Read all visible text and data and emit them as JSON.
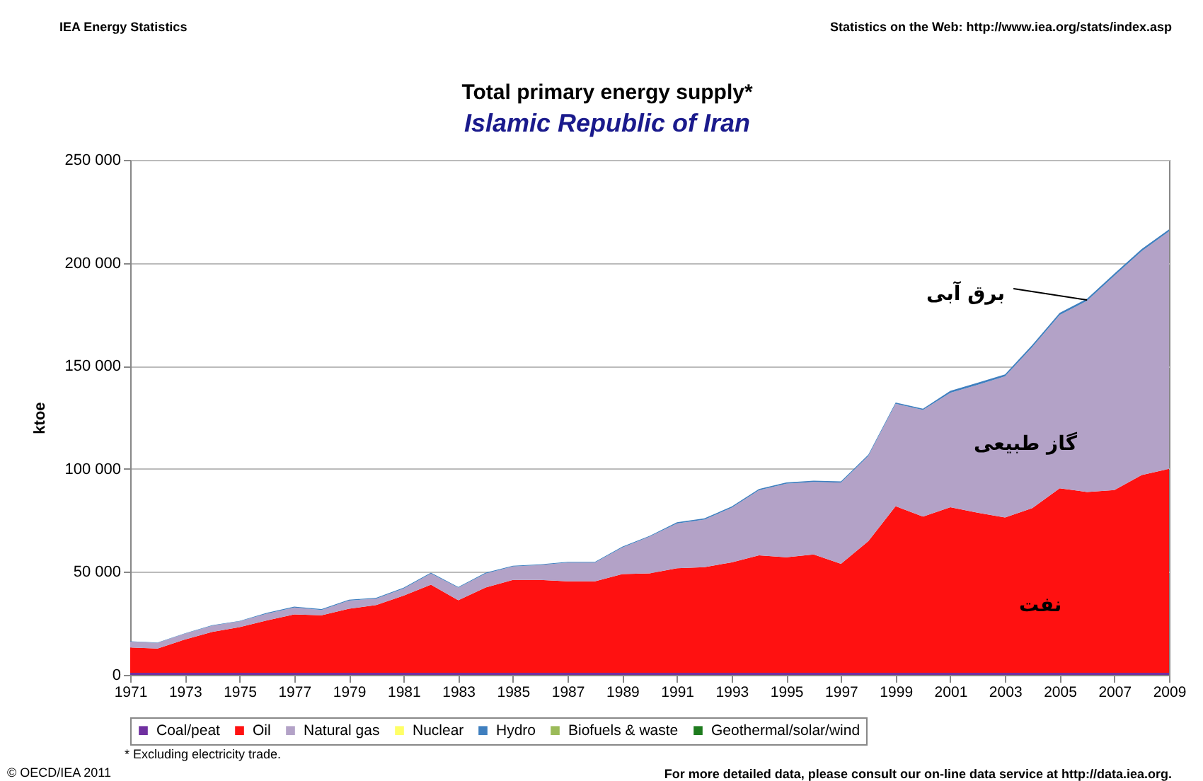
{
  "chart_data": {
    "type": "area",
    "stacked": true,
    "title": "Total primary energy supply*",
    "subtitle": "Islamic Republic of Iran",
    "ylabel": "ktoe",
    "x": [
      1971,
      1972,
      1973,
      1974,
      1975,
      1976,
      1977,
      1978,
      1979,
      1980,
      1981,
      1982,
      1983,
      1984,
      1985,
      1986,
      1987,
      1988,
      1989,
      1990,
      1991,
      1992,
      1993,
      1994,
      1995,
      1996,
      1997,
      1998,
      1999,
      2000,
      2001,
      2002,
      2003,
      2004,
      2005,
      2006,
      2007,
      2008,
      2009
    ],
    "series": [
      {
        "name": "Coal/peat",
        "color": "#7030a0",
        "values": [
          1000,
          1000,
          1000,
          1000,
          1000,
          1000,
          1000,
          1000,
          1000,
          1000,
          1000,
          1000,
          1000,
          1000,
          1000,
          1000,
          1000,
          1000,
          1000,
          1000,
          1000,
          1000,
          1000,
          1000,
          1000,
          1000,
          1000,
          1000,
          1000,
          1000,
          1000,
          1000,
          1000,
          1000,
          1000,
          1000,
          1000,
          1000,
          1000
        ]
      },
      {
        "name": "Oil",
        "color": "#ff1111",
        "values": [
          12300,
          11800,
          16200,
          19900,
          22200,
          25400,
          28400,
          27900,
          31100,
          32900,
          37500,
          42800,
          35200,
          41400,
          45100,
          45100,
          44400,
          44400,
          47900,
          48300,
          50800,
          51300,
          53600,
          57000,
          56100,
          57500,
          52900,
          63900,
          80900,
          75800,
          80400,
          77700,
          75400,
          80000,
          89600,
          87800,
          88700,
          96000,
          99000
        ]
      },
      {
        "name": "Natural gas",
        "color": "#b3a2c7",
        "values": [
          2800,
          2700,
          2800,
          3000,
          2800,
          3300,
          3300,
          2600,
          4000,
          3100,
          3400,
          5400,
          6100,
          6800,
          6500,
          7200,
          9100,
          9100,
          12900,
          17800,
          21700,
          23100,
          26500,
          31600,
          35700,
          35200,
          39400,
          41400,
          49700,
          51800,
          55500,
          62100,
          68500,
          78200,
          84100,
          92800,
          104100,
          108700,
          115300
        ]
      },
      {
        "name": "Nuclear",
        "color": "#ffff66",
        "values": [
          null,
          null,
          null,
          null,
          null,
          null,
          null,
          null,
          null,
          null,
          null,
          null,
          null,
          null,
          null,
          null,
          null,
          null,
          null,
          null,
          null,
          null,
          null,
          null,
          null,
          null,
          null,
          null,
          null,
          null,
          null,
          null,
          null,
          null,
          null,
          null,
          null,
          null,
          null
        ]
      },
      {
        "name": "Hydro",
        "color": "#3f7fbf",
        "values": [
          200,
          200,
          200,
          200,
          200,
          400,
          400,
          400,
          400,
          400,
          400,
          400,
          400,
          400,
          400,
          400,
          400,
          400,
          400,
          400,
          600,
          600,
          600,
          600,
          600,
          600,
          600,
          600,
          600,
          600,
          1000,
          1000,
          1000,
          1000,
          1000,
          1000,
          1000,
          1000,
          1000
        ]
      },
      {
        "name": "Biofuels & waste",
        "color": "#9bbb59",
        "values": [
          null,
          null,
          null,
          null,
          null,
          null,
          null,
          null,
          null,
          null,
          null,
          null,
          null,
          null,
          null,
          null,
          null,
          null,
          null,
          null,
          null,
          null,
          null,
          null,
          null,
          null,
          null,
          null,
          null,
          null,
          null,
          null,
          null,
          null,
          null,
          null,
          null,
          null,
          null
        ]
      },
      {
        "name": "Geothermal/solar/wind",
        "color": "#1e7b1e",
        "values": [
          null,
          null,
          null,
          null,
          null,
          null,
          null,
          null,
          null,
          null,
          null,
          null,
          null,
          null,
          null,
          null,
          null,
          null,
          null,
          null,
          null,
          null,
          null,
          null,
          null,
          null,
          null,
          null,
          null,
          null,
          null,
          null,
          null,
          null,
          null,
          null,
          null,
          null,
          null
        ]
      }
    ],
    "xlim": [
      1971,
      2009
    ],
    "xticks": [
      1971,
      1973,
      1975,
      1977,
      1979,
      1981,
      1983,
      1985,
      1987,
      1989,
      1991,
      1993,
      1995,
      1997,
      1999,
      2001,
      2003,
      2005,
      2007,
      2009
    ],
    "ylim": [
      0,
      250000
    ],
    "yticks": [
      0,
      {
        "value": 50000,
        "label": "50 000"
      },
      {
        "value": 100000,
        "label": "100 000"
      },
      {
        "value": 150000,
        "label": "150 000"
      },
      {
        "value": 200000,
        "label": "200 000"
      },
      {
        "value": 250000,
        "label": "250 000"
      }
    ],
    "grid": "y",
    "legend": "bottom",
    "annotations": [
      {
        "text": "برق آبی",
        "x": 2006,
        "y": 182000
      },
      "گاز طبیعی",
      "نفت",
      "IEA Energy Statistics",
      "Statistics on the Web: http://www.iea.org/stats/index.asp",
      "* Excluding electricity trade.",
      "© OECD/IEA 2011",
      "For more detailed data, please consult our on-line data service at http://data.iea.org."
    ]
  }
}
